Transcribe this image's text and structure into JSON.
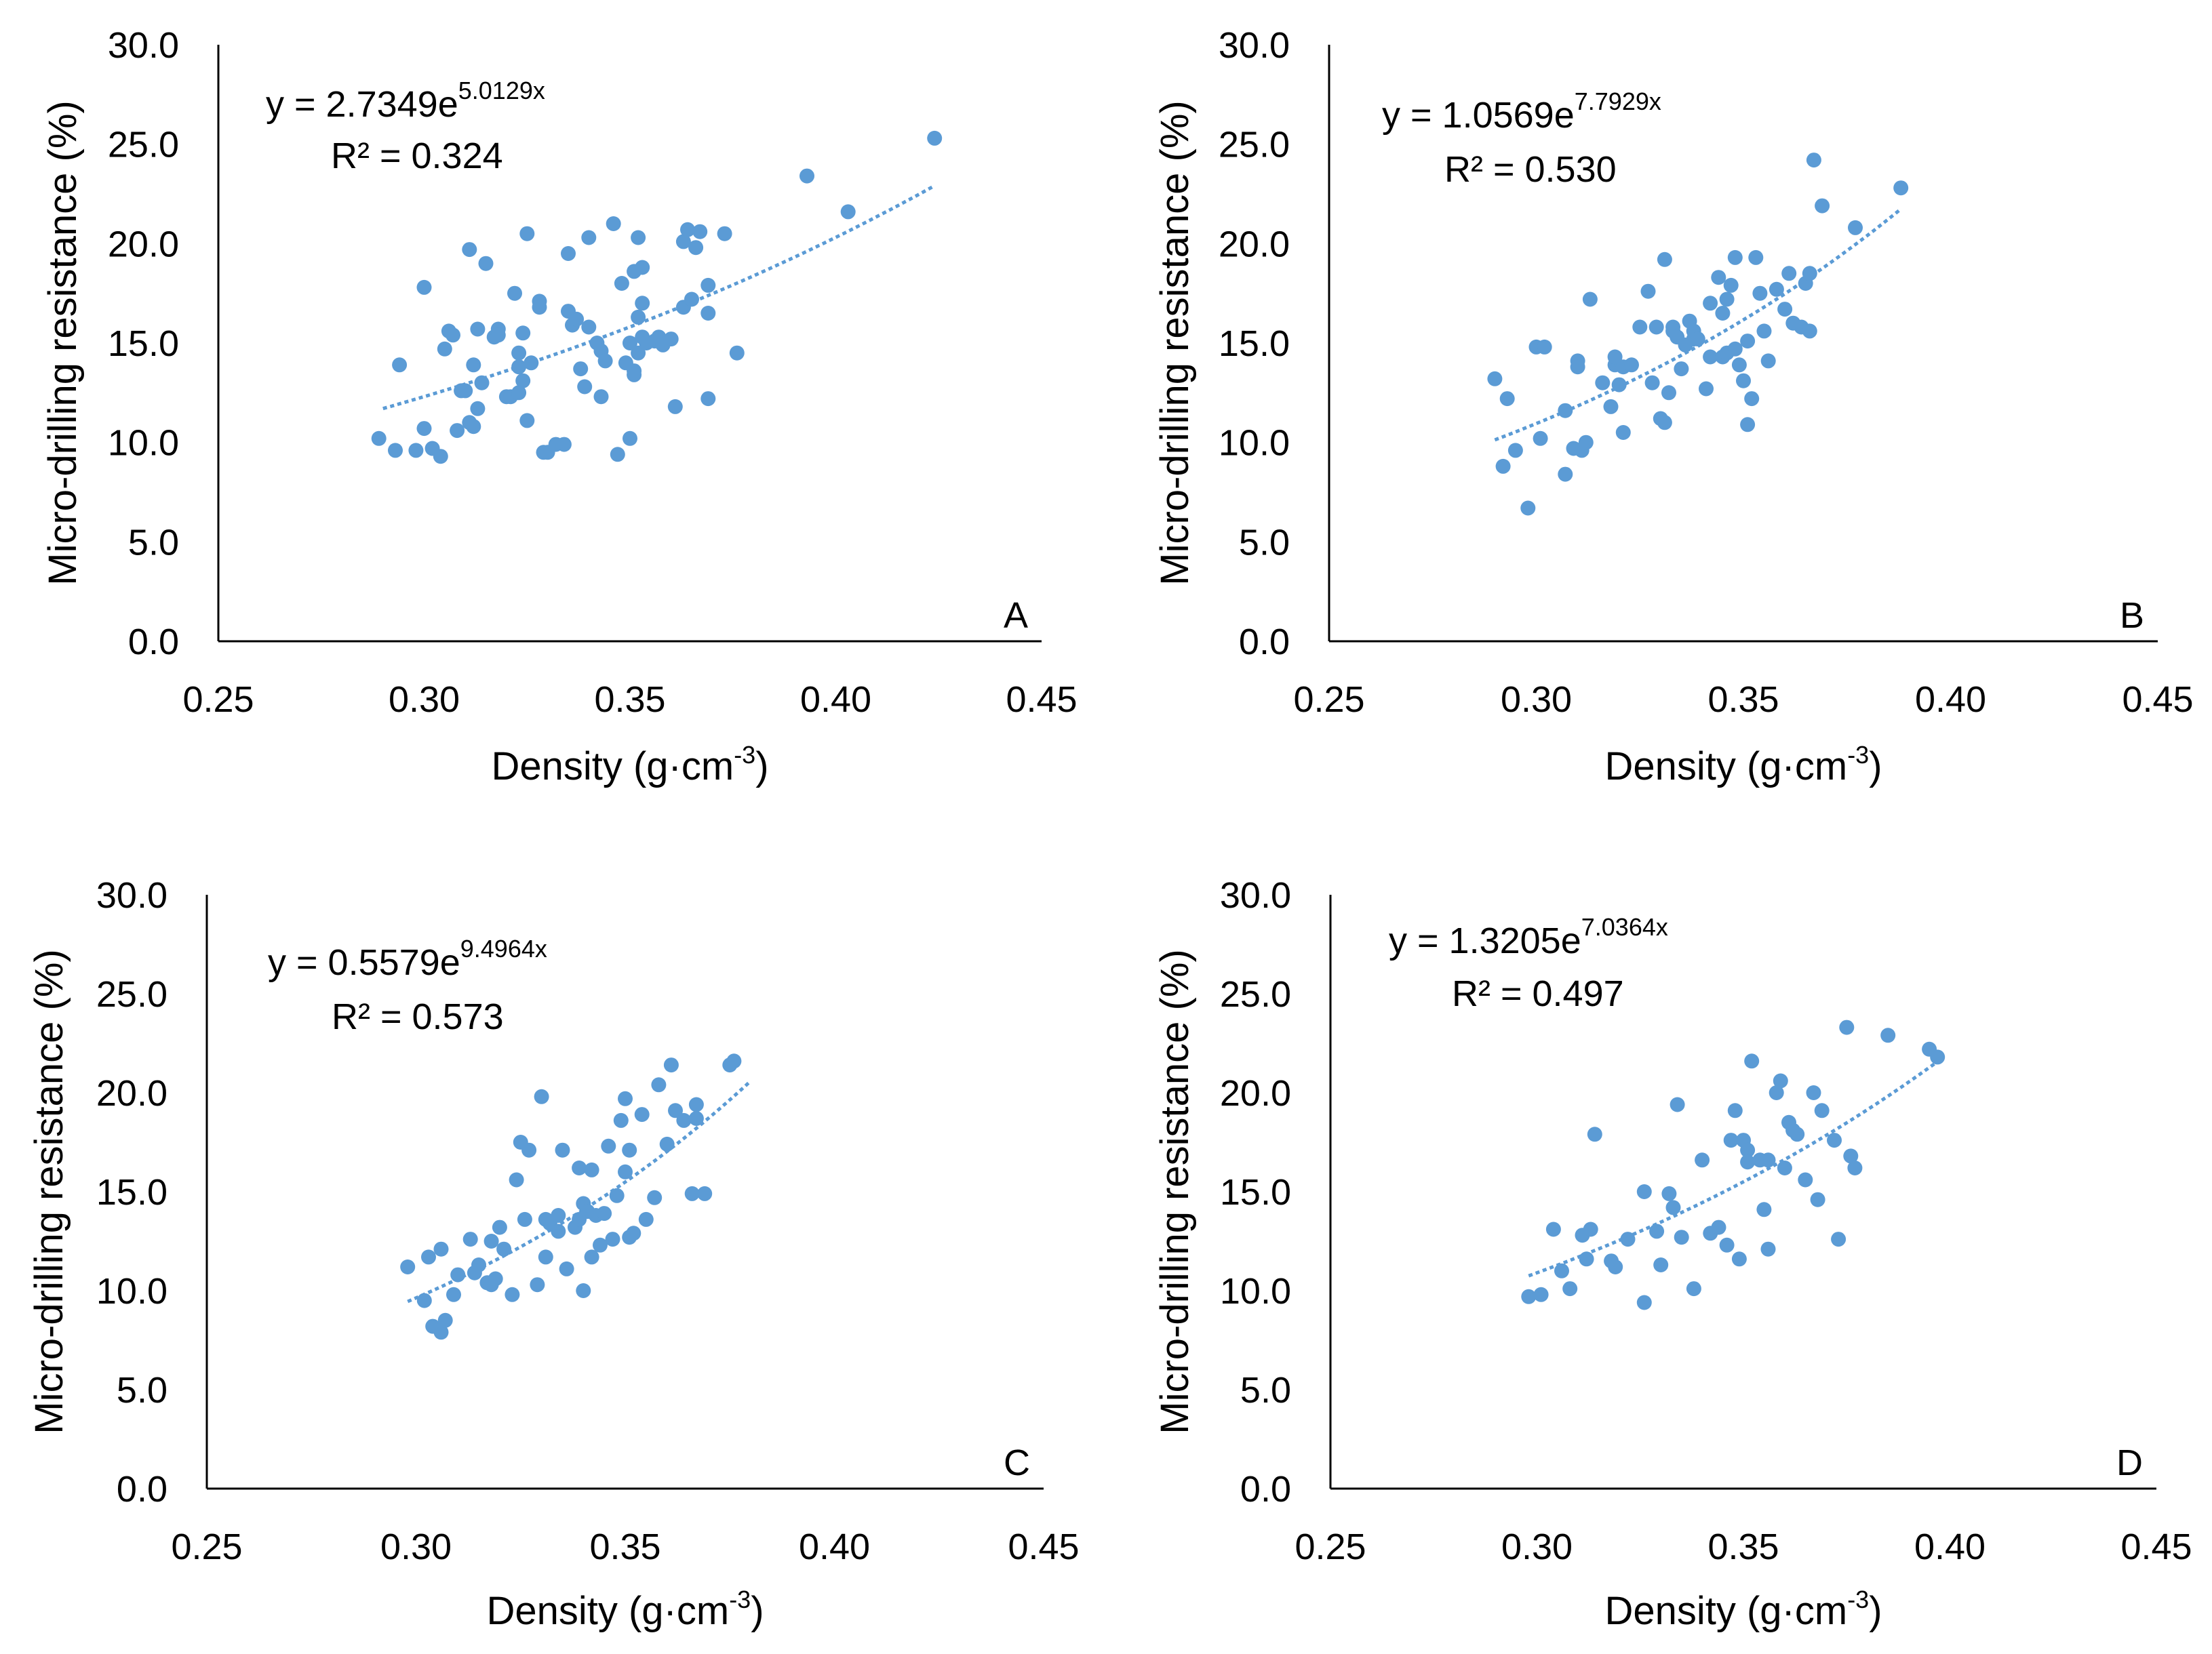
{
  "colors": {
    "point": "#5b9bd5",
    "trend": "#5b9bd5",
    "axis": "#000000",
    "text": "#000000"
  },
  "chart_data": [
    {
      "type": "scatter",
      "panel_label": "A",
      "xlabel": "Density (g·cm",
      "xlabel_sup": "-3",
      "xlabel_end": ")",
      "ylabel": "Micro-drilling resistance (%)",
      "xlim": [
        0.25,
        0.45
      ],
      "ylim": [
        0,
        30
      ],
      "x_ticks": [
        "0.25",
        "0.30",
        "0.35",
        "0.40",
        "0.45"
      ],
      "y_ticks": [
        "0.0",
        "5.0",
        "10.0",
        "15.0",
        "20.0",
        "25.0",
        "30.0"
      ],
      "equation": "y = 2.7349e",
      "equation_exp": "5.0129x",
      "r2": "R² = 0.324",
      "trend": {
        "a": 2.7349,
        "b": 5.0129,
        "x_range": [
          0.29,
          0.424
        ]
      },
      "x": [
        0.289,
        0.293,
        0.294,
        0.298,
        0.3,
        0.3,
        0.302,
        0.304,
        0.305,
        0.306,
        0.307,
        0.308,
        0.309,
        0.31,
        0.311,
        0.311,
        0.312,
        0.312,
        0.313,
        0.313,
        0.314,
        0.315,
        0.317,
        0.318,
        0.318,
        0.32,
        0.321,
        0.322,
        0.323,
        0.323,
        0.323,
        0.324,
        0.324,
        0.325,
        0.325,
        0.326,
        0.328,
        0.328,
        0.329,
        0.33,
        0.332,
        0.334,
        0.335,
        0.335,
        0.336,
        0.337,
        0.338,
        0.339,
        0.34,
        0.34,
        0.342,
        0.343,
        0.343,
        0.344,
        0.346,
        0.347,
        0.348,
        0.349,
        0.35,
        0.35,
        0.351,
        0.351,
        0.351,
        0.352,
        0.352,
        0.352,
        0.353,
        0.353,
        0.353,
        0.354,
        0.356,
        0.357,
        0.358,
        0.36,
        0.361,
        0.363,
        0.363,
        0.364,
        0.365,
        0.366,
        0.367,
        0.369,
        0.369,
        0.369,
        0.373,
        0.376,
        0.393,
        0.403,
        0.424
      ],
      "y": [
        10.2,
        9.6,
        13.9,
        9.6,
        17.8,
        10.7,
        9.7,
        9.3,
        14.7,
        15.6,
        15.4,
        10.6,
        12.6,
        12.6,
        11.0,
        19.7,
        13.9,
        10.8,
        11.7,
        15.7,
        13.0,
        19.0,
        15.3,
        15.7,
        15.4,
        12.3,
        12.3,
        17.5,
        14.5,
        12.5,
        13.8,
        15.5,
        13.1,
        11.1,
        20.5,
        14.0,
        16.8,
        17.1,
        9.5,
        9.5,
        9.9,
        9.9,
        16.6,
        19.5,
        15.9,
        16.2,
        13.7,
        12.8,
        20.3,
        15.8,
        15.0,
        14.6,
        12.3,
        14.1,
        21.0,
        9.4,
        18.0,
        14.0,
        10.2,
        15.0,
        13.6,
        13.4,
        18.6,
        20.3,
        16.3,
        14.5,
        17.0,
        18.8,
        15.3,
        15.0,
        15.1,
        15.3,
        14.9,
        15.2,
        11.8,
        16.8,
        20.1,
        20.7,
        17.2,
        19.8,
        20.6,
        16.5,
        17.9,
        12.2,
        20.5,
        14.5,
        23.4,
        21.6,
        25.3
      ]
    },
    {
      "type": "scatter",
      "panel_label": "B",
      "xlabel": "Density (g·cm",
      "xlabel_sup": "-3",
      "xlabel_end": ")",
      "ylabel": "Micro-drilling resistance (%)",
      "xlim": [
        0.25,
        0.45
      ],
      "ylim": [
        0,
        30
      ],
      "x_ticks": [
        "0.25",
        "0.30",
        "0.35",
        "0.40",
        "0.45"
      ],
      "y_ticks": [
        "0.0",
        "5.0",
        "10.0",
        "15.0",
        "20.0",
        "25.0",
        "30.0"
      ],
      "equation": "y = 1.0569e",
      "equation_exp": "7.7929x",
      "r2": "R² = 0.530",
      "trend": {
        "a": 1.0569,
        "b": 7.7929,
        "x_range": [
          0.29,
          0.388
        ]
      },
      "x": [
        0.29,
        0.292,
        0.293,
        0.295,
        0.298,
        0.3,
        0.301,
        0.302,
        0.307,
        0.307,
        0.309,
        0.31,
        0.31,
        0.311,
        0.312,
        0.313,
        0.316,
        0.318,
        0.319,
        0.319,
        0.32,
        0.321,
        0.321,
        0.323,
        0.325,
        0.327,
        0.328,
        0.329,
        0.33,
        0.331,
        0.331,
        0.332,
        0.333,
        0.333,
        0.334,
        0.335,
        0.336,
        0.337,
        0.338,
        0.338,
        0.339,
        0.341,
        0.342,
        0.342,
        0.344,
        0.345,
        0.345,
        0.346,
        0.346,
        0.347,
        0.348,
        0.348,
        0.349,
        0.35,
        0.351,
        0.351,
        0.352,
        0.353,
        0.354,
        0.355,
        0.356,
        0.358,
        0.36,
        0.361,
        0.362,
        0.364,
        0.365,
        0.366,
        0.366,
        0.367,
        0.369,
        0.377,
        0.388
      ],
      "y": [
        13.2,
        8.8,
        12.2,
        9.6,
        6.7,
        14.8,
        10.2,
        14.8,
        8.4,
        11.6,
        9.7,
        14.1,
        13.8,
        9.6,
        10.0,
        17.2,
        13.0,
        11.8,
        13.9,
        14.3,
        12.9,
        10.5,
        13.8,
        13.9,
        15.8,
        17.6,
        13.0,
        15.8,
        11.2,
        11.0,
        19.2,
        12.5,
        15.8,
        15.6,
        15.3,
        13.7,
        14.9,
        16.1,
        15.2,
        15.6,
        15.2,
        12.7,
        17.0,
        14.3,
        18.3,
        14.3,
        16.5,
        14.5,
        17.2,
        17.9,
        19.3,
        14.7,
        13.9,
        13.1,
        10.9,
        15.1,
        12.2,
        19.3,
        17.5,
        15.6,
        14.1,
        17.7,
        16.7,
        18.5,
        16.0,
        15.8,
        18.0,
        15.6,
        18.5,
        24.2,
        21.9,
        20.8,
        22.8
      ]
    },
    {
      "type": "scatter",
      "panel_label": "C",
      "xlabel": "Density (g·cm",
      "xlabel_sup": "-3",
      "xlabel_end": ")",
      "ylabel": "Micro-drilling resistance (%)",
      "xlim": [
        0.25,
        0.45
      ],
      "ylim": [
        0,
        30
      ],
      "x_ticks": [
        "0.25",
        "0.30",
        "0.35",
        "0.40",
        "0.45"
      ],
      "y_ticks": [
        "0.0",
        "5.0",
        "10.0",
        "15.0",
        "20.0",
        "25.0",
        "30.0"
      ],
      "equation": "y = 0.5579e",
      "equation_exp": "9.4964x",
      "r2": "R² = 0.573",
      "trend": {
        "a": 0.5579,
        "b": 9.4964,
        "x_range": [
          0.298,
          0.38
        ]
      },
      "x": [
        0.298,
        0.302,
        0.303,
        0.304,
        0.306,
        0.306,
        0.307,
        0.309,
        0.31,
        0.313,
        0.314,
        0.315,
        0.317,
        0.318,
        0.318,
        0.319,
        0.32,
        0.321,
        0.323,
        0.324,
        0.325,
        0.326,
        0.327,
        0.329,
        0.33,
        0.331,
        0.331,
        0.332,
        0.334,
        0.334,
        0.335,
        0.336,
        0.338,
        0.339,
        0.339,
        0.34,
        0.34,
        0.341,
        0.342,
        0.342,
        0.343,
        0.344,
        0.345,
        0.346,
        0.347,
        0.348,
        0.349,
        0.35,
        0.35,
        0.351,
        0.351,
        0.352,
        0.354,
        0.355,
        0.357,
        0.358,
        0.36,
        0.361,
        0.362,
        0.364,
        0.366,
        0.367,
        0.367,
        0.369,
        0.375,
        0.376
      ],
      "y": [
        11.2,
        9.5,
        11.7,
        8.2,
        7.9,
        12.1,
        8.5,
        9.8,
        10.8,
        12.6,
        10.9,
        11.3,
        10.4,
        10.3,
        12.5,
        10.6,
        13.2,
        12.1,
        9.8,
        15.6,
        17.5,
        13.6,
        17.1,
        10.3,
        19.8,
        11.7,
        13.6,
        13.4,
        13.8,
        13.0,
        17.1,
        11.1,
        13.2,
        13.6,
        16.2,
        14.4,
        10.0,
        14.0,
        16.1,
        11.7,
        13.8,
        12.3,
        13.9,
        17.3,
        12.6,
        14.8,
        18.6,
        19.7,
        16.0,
        12.7,
        17.1,
        12.9,
        18.9,
        13.6,
        14.7,
        20.4,
        17.4,
        21.4,
        19.1,
        18.6,
        14.9,
        19.4,
        18.7,
        14.9,
        21.4,
        21.6
      ]
    },
    {
      "type": "scatter",
      "panel_label": "D",
      "xlabel": "Density (g·cm",
      "xlabel_sup": "-3",
      "xlabel_end": ")",
      "ylabel": "Micro-drilling resistance (%)",
      "xlim": [
        0.25,
        0.45
      ],
      "ylim": [
        0,
        30
      ],
      "x_ticks": [
        "0.25",
        "0.30",
        "0.35",
        "0.40",
        "0.45"
      ],
      "y_ticks": [
        "0.0",
        "5.0",
        "10.0",
        "15.0",
        "20.0",
        "25.0",
        "30.0"
      ],
      "equation": "y = 1.3205e",
      "equation_exp": "7.0364x",
      "r2": "R² = 0.497",
      "trend": {
        "a": 1.3205,
        "b": 7.0364,
        "x_range": [
          0.298,
          0.397
        ]
      },
      "x": [
        0.298,
        0.301,
        0.304,
        0.306,
        0.308,
        0.311,
        0.312,
        0.313,
        0.314,
        0.318,
        0.319,
        0.322,
        0.326,
        0.326,
        0.329,
        0.33,
        0.332,
        0.333,
        0.334,
        0.335,
        0.338,
        0.34,
        0.342,
        0.344,
        0.346,
        0.347,
        0.348,
        0.349,
        0.35,
        0.351,
        0.351,
        0.352,
        0.354,
        0.355,
        0.356,
        0.356,
        0.358,
        0.359,
        0.36,
        0.361,
        0.362,
        0.363,
        0.365,
        0.367,
        0.368,
        0.369,
        0.372,
        0.373,
        0.375,
        0.376,
        0.377,
        0.385,
        0.395,
        0.397
      ],
      "y": [
        9.7,
        9.8,
        13.1,
        11.0,
        10.1,
        12.8,
        11.6,
        13.1,
        17.9,
        11.5,
        11.2,
        12.6,
        9.4,
        15.0,
        13.0,
        11.3,
        14.9,
        14.2,
        19.4,
        12.7,
        10.1,
        16.6,
        12.9,
        13.2,
        12.3,
        17.6,
        19.1,
        11.6,
        17.6,
        17.1,
        16.5,
        21.6,
        16.6,
        14.1,
        16.6,
        12.1,
        20.0,
        20.6,
        16.2,
        18.5,
        18.1,
        17.9,
        15.6,
        20.0,
        14.6,
        19.1,
        17.6,
        12.6,
        23.3,
        16.8,
        16.2,
        22.9,
        22.2,
        21.8
      ]
    }
  ]
}
